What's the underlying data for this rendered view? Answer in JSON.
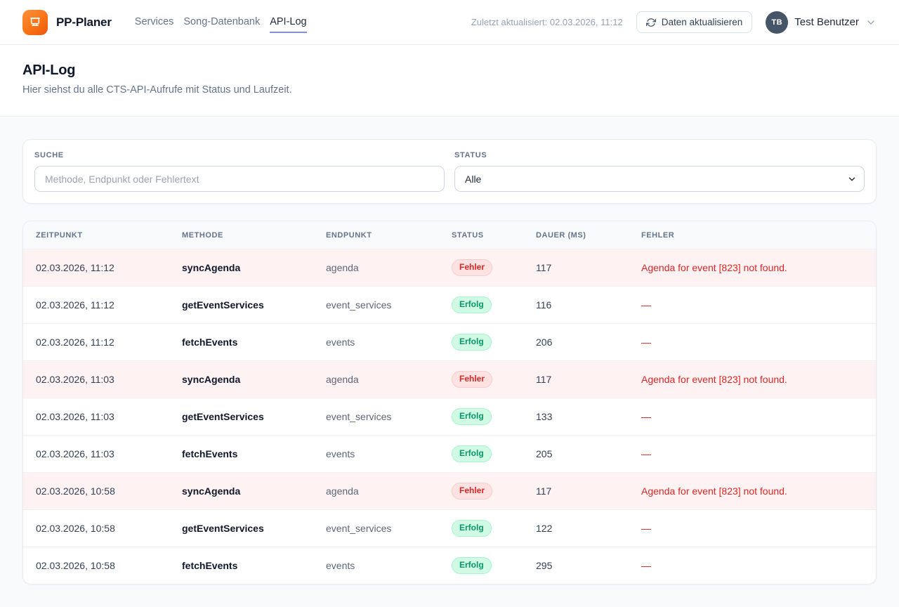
{
  "header": {
    "brand": "PP-Planer",
    "nav": [
      {
        "label": "Services",
        "active": false
      },
      {
        "label": "Song-Datenbank",
        "active": false
      },
      {
        "label": "API-Log",
        "active": true
      }
    ],
    "last_updated": "Zuletzt aktualisiert: 02.03.2026, 11:12",
    "refresh_button_label": "Daten aktualisieren",
    "user": {
      "initials": "TB",
      "name": "Test Benutzer"
    }
  },
  "page": {
    "title": "API-Log",
    "subtitle": "Hier siehst du alle CTS-API-Aufrufe mit Status und Laufzeit."
  },
  "filters": {
    "search_label": "SUCHE",
    "search_placeholder": "Methode, Endpunkt oder Fehlertext",
    "search_value": "",
    "status_label": "STATUS",
    "status_value": "Alle"
  },
  "table": {
    "columns": [
      "ZEITPUNKT",
      "METHODE",
      "ENDPUNKT",
      "STATUS",
      "DAUER (MS)",
      "FEHLER"
    ],
    "status_error_label": "Fehler",
    "status_success_label": "Erfolg",
    "rows": [
      {
        "zeitpunkt": "02.03.2026, 11:12",
        "methode": "syncAgenda",
        "endpunkt": "agenda",
        "status": "Fehler",
        "dauer": 117,
        "fehler": "Agenda for event [823] not found."
      },
      {
        "zeitpunkt": "02.03.2026, 11:12",
        "methode": "getEventServices",
        "endpunkt": "event_services",
        "status": "Erfolg",
        "dauer": 116,
        "fehler": "—"
      },
      {
        "zeitpunkt": "02.03.2026, 11:12",
        "methode": "fetchEvents",
        "endpunkt": "events",
        "status": "Erfolg",
        "dauer": 206,
        "fehler": "—"
      },
      {
        "zeitpunkt": "02.03.2026, 11:03",
        "methode": "syncAgenda",
        "endpunkt": "agenda",
        "status": "Fehler",
        "dauer": 117,
        "fehler": "Agenda for event [823] not found."
      },
      {
        "zeitpunkt": "02.03.2026, 11:03",
        "methode": "getEventServices",
        "endpunkt": "event_services",
        "status": "Erfolg",
        "dauer": 133,
        "fehler": "—"
      },
      {
        "zeitpunkt": "02.03.2026, 11:03",
        "methode": "fetchEvents",
        "endpunkt": "events",
        "status": "Erfolg",
        "dauer": 205,
        "fehler": "—"
      },
      {
        "zeitpunkt": "02.03.2026, 10:58",
        "methode": "syncAgenda",
        "endpunkt": "agenda",
        "status": "Fehler",
        "dauer": 117,
        "fehler": "Agenda for event [823] not found."
      },
      {
        "zeitpunkt": "02.03.2026, 10:58",
        "methode": "getEventServices",
        "endpunkt": "event_services",
        "status": "Erfolg",
        "dauer": 122,
        "fehler": "—"
      },
      {
        "zeitpunkt": "02.03.2026, 10:58",
        "methode": "fetchEvents",
        "endpunkt": "events",
        "status": "Erfolg",
        "dauer": 295,
        "fehler": "—"
      }
    ]
  },
  "icons": {
    "logo": "presentation-board-icon",
    "refresh": "refresh-icon",
    "user_menu": "chevron-down-icon",
    "status_select": "chevron-down-icon"
  },
  "colors": {
    "brand_orange": "#f97316",
    "active_nav_underline": "#818cf8",
    "page_background": "#f8fafc",
    "avatar_background": "#475569",
    "error_text": "#dc2626",
    "error_row_background": "#fef2f2",
    "error_badge_background": "#fee2e2",
    "success_text": "#059669",
    "success_badge_background": "#d1fae5"
  }
}
